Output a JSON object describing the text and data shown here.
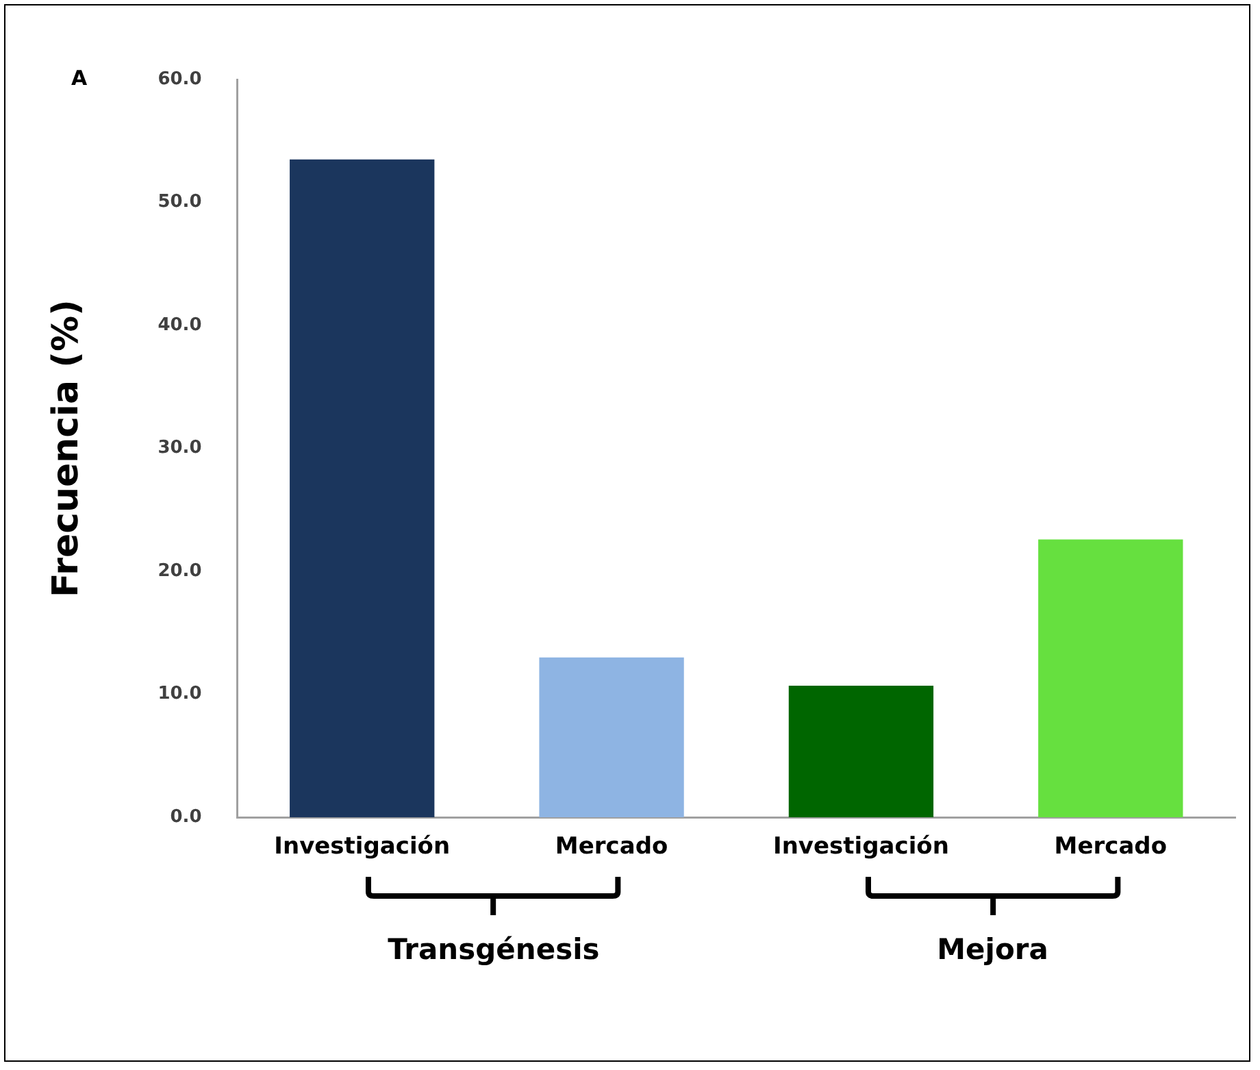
{
  "chart_data": {
    "type": "bar",
    "title": "A",
    "ylabel": "Frecuencia (%)",
    "categories": [
      "Investigación",
      "Mercado",
      "Investigación",
      "Mercado"
    ],
    "values": [
      53.5,
      13.0,
      10.7,
      22.6
    ],
    "colors": [
      "#1b365d",
      "#8eb4e3",
      "#006600",
      "#66e03f"
    ],
    "ylim": [
      0,
      60
    ],
    "yticks": [
      {
        "value": 0,
        "label": "0.0"
      },
      {
        "value": 10,
        "label": "10.0"
      },
      {
        "value": 20,
        "label": "20.0"
      },
      {
        "value": 30,
        "label": "30.0"
      },
      {
        "value": 40,
        "label": "40.0"
      },
      {
        "value": 50,
        "label": "50.0"
      },
      {
        "value": 60,
        "label": "60.0"
      }
    ],
    "grid": false,
    "legend": false,
    "annotations": [
      "Transgénesis",
      "Mejora"
    ]
  }
}
